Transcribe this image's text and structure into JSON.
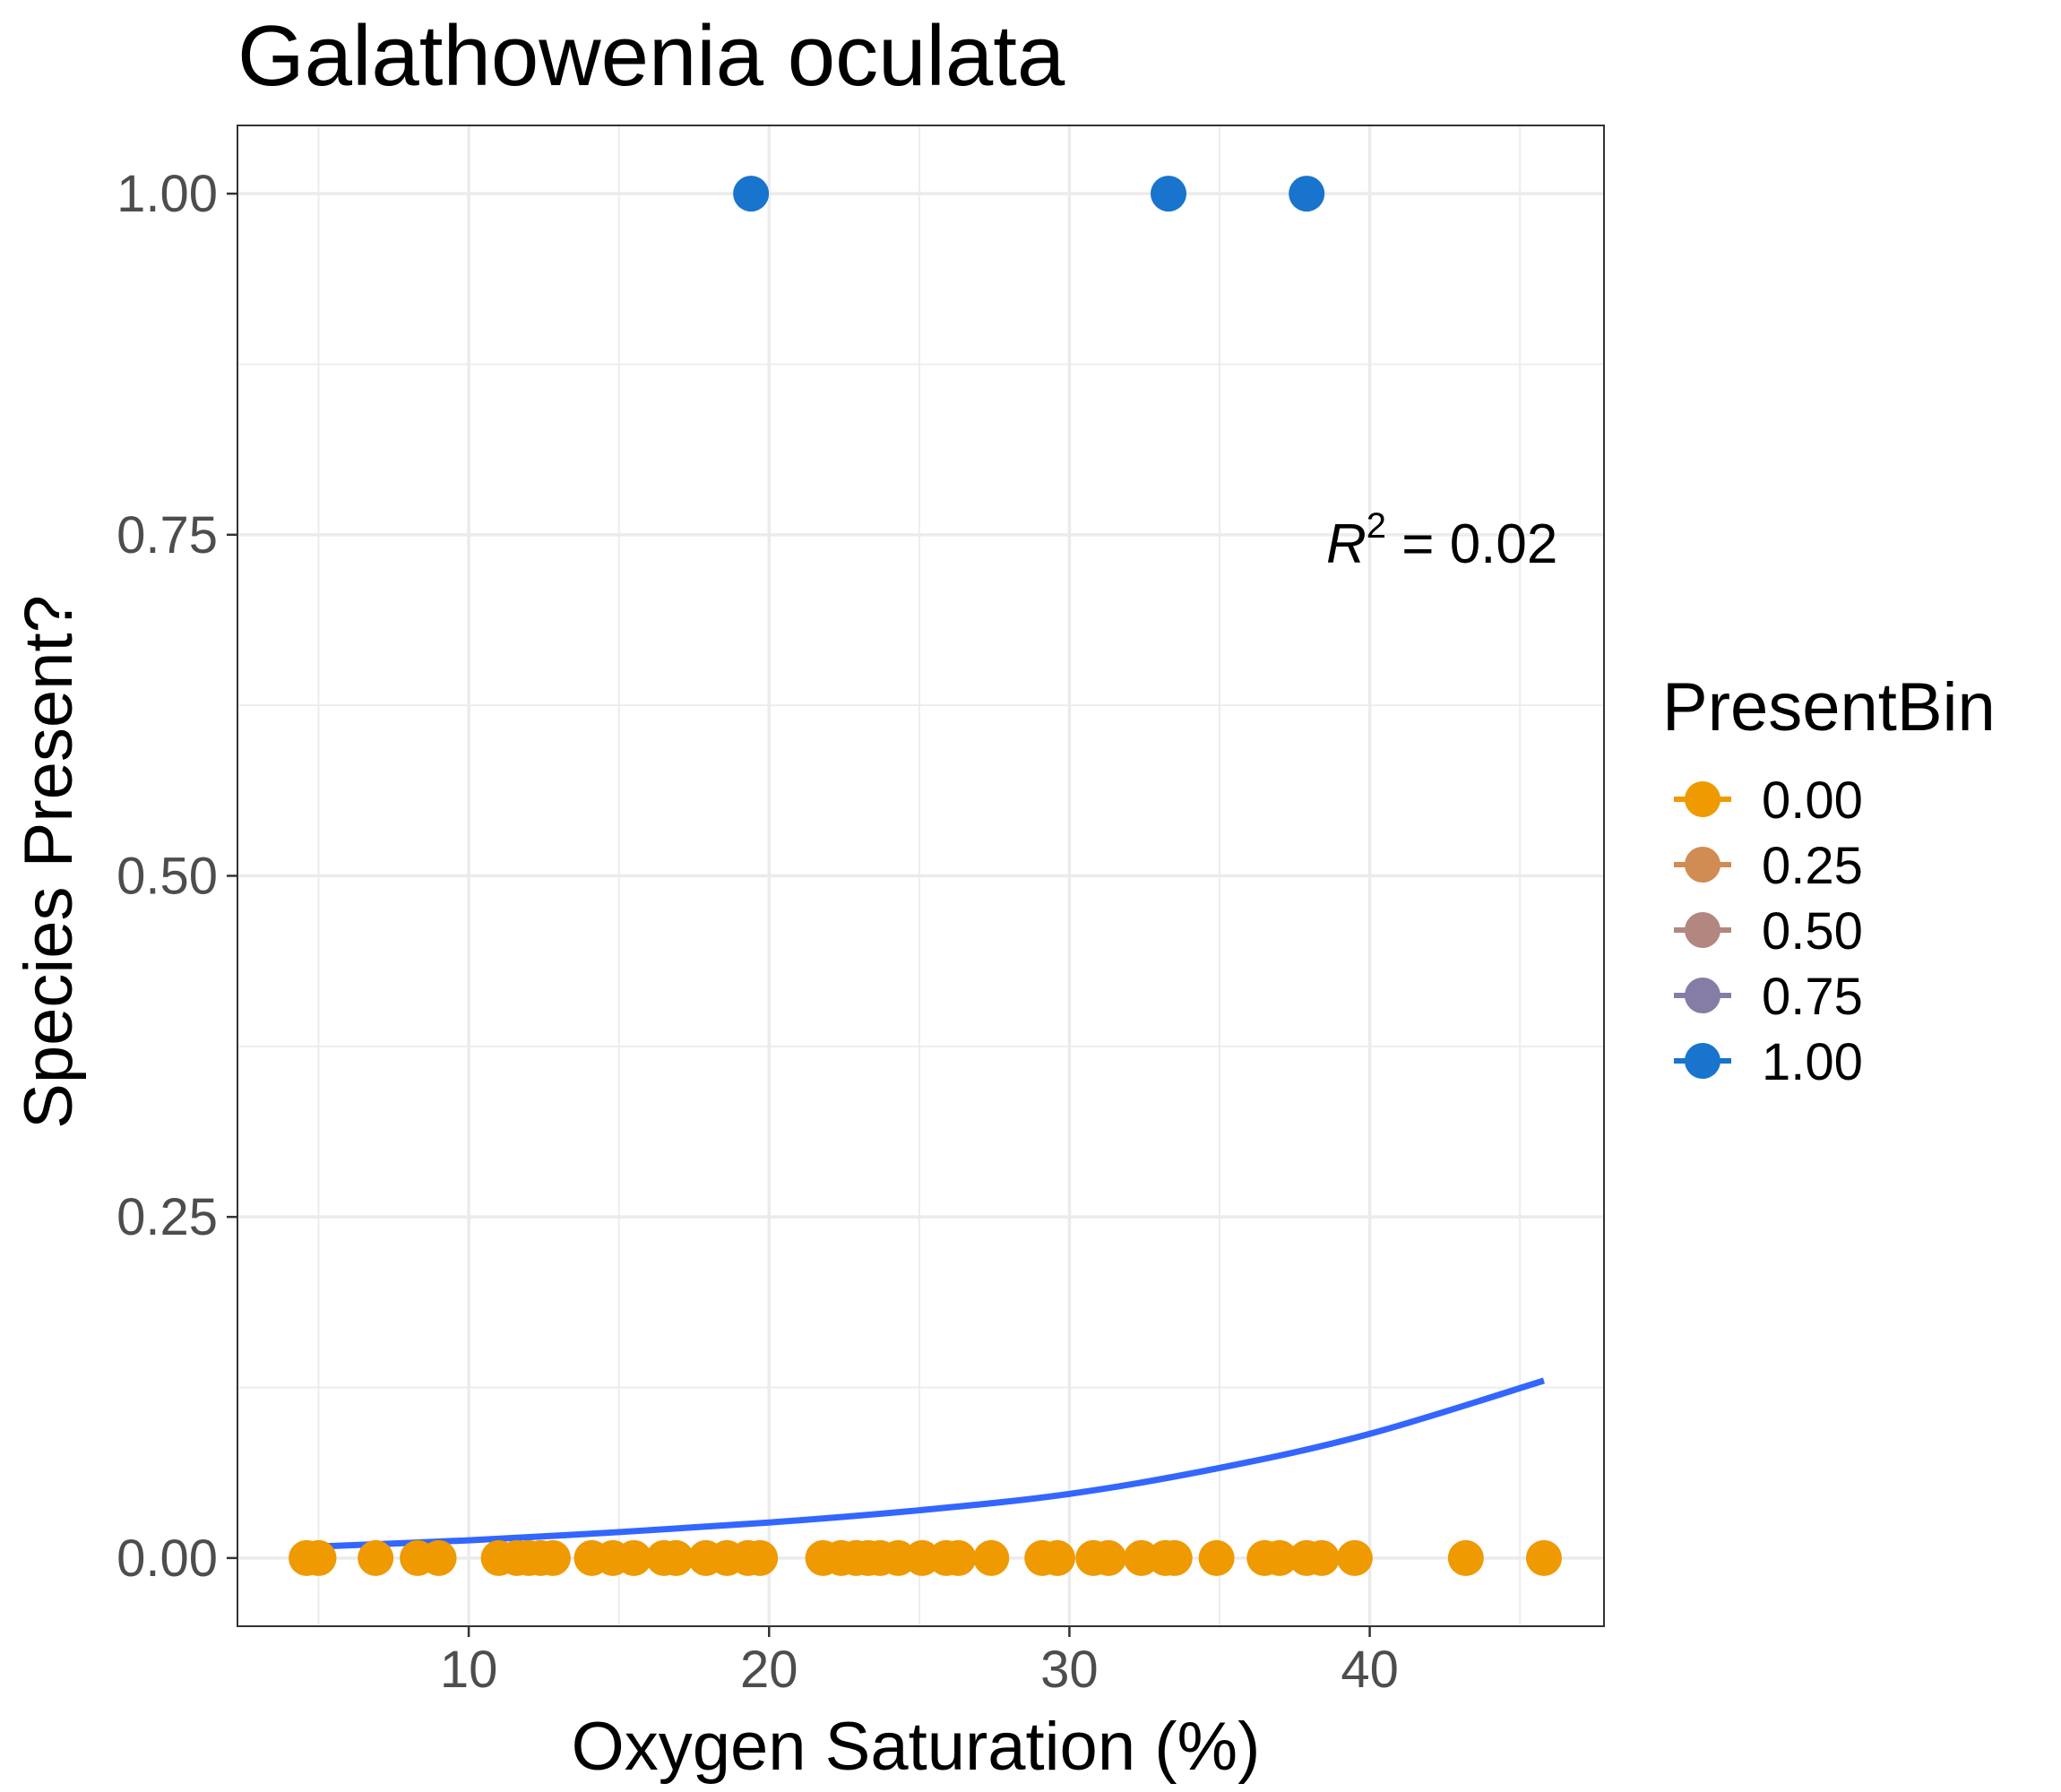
{
  "chart_data": {
    "type": "scatter",
    "title": "Galathowenia oculata",
    "xlabel": "Oxygen Saturation (%)",
    "ylabel": "Species Present?",
    "xlim": [
      2.3,
      47.8
    ],
    "ylim": [
      -0.05,
      1.05
    ],
    "x_ticks": [
      10,
      20,
      30,
      40
    ],
    "x_tick_labels": [
      "10",
      "20",
      "30",
      "40"
    ],
    "y_ticks": [
      0,
      0.25,
      0.5,
      0.75,
      1.0
    ],
    "y_tick_labels": [
      "0.00",
      "0.25",
      "0.50",
      "0.75",
      "1.00"
    ],
    "grid": true,
    "annotation": {
      "r_symbol": "R",
      "superscript": "2",
      "text": " = 0.02"
    },
    "legend": {
      "title": "PresentBin",
      "position": "right",
      "entries": [
        {
          "label": "0.00",
          "color": "#EE9A00"
        },
        {
          "label": "0.25",
          "color": "#D08C52"
        },
        {
          "label": "0.50",
          "color": "#B28780"
        },
        {
          "label": "0.75",
          "color": "#857DA5"
        },
        {
          "label": "1.00",
          "color": "#1874CD"
        }
      ]
    },
    "series": [
      {
        "name": "0.00",
        "color": "#EE9A00",
        "x": [
          4.6,
          5.0,
          6.9,
          8.3,
          9.0,
          11.0,
          11.6,
          12.0,
          12.4,
          12.8,
          14.1,
          14.8,
          15.5,
          16.5,
          16.9,
          17.9,
          18.6,
          19.3,
          19.7,
          21.8,
          22.4,
          22.9,
          23.3,
          23.7,
          24.3,
          25.1,
          25.9,
          26.3,
          27.4,
          29.1,
          29.6,
          30.8,
          31.3,
          32.4,
          33.2,
          33.5,
          34.9,
          36.5,
          37.0,
          37.9,
          38.4,
          39.5,
          43.2,
          45.8
        ],
        "y": [
          0,
          0,
          0,
          0,
          0,
          0,
          0,
          0,
          0,
          0,
          0,
          0,
          0,
          0,
          0,
          0,
          0,
          0,
          0,
          0,
          0,
          0,
          0,
          0,
          0,
          0,
          0,
          0,
          0,
          0,
          0,
          0,
          0,
          0,
          0,
          0,
          0,
          0,
          0,
          0,
          0,
          0,
          0,
          0
        ]
      },
      {
        "name": "1.00",
        "color": "#1874CD",
        "x": [
          19.4,
          33.3,
          37.9
        ],
        "y": [
          1,
          1,
          1
        ]
      }
    ],
    "fit_line": {
      "color": "#3366FF",
      "x": [
        4.5,
        10,
        15,
        20,
        25,
        30,
        35,
        40,
        45.8
      ],
      "y": [
        0.008,
        0.013,
        0.019,
        0.026,
        0.035,
        0.047,
        0.066,
        0.091,
        0.13
      ]
    }
  }
}
